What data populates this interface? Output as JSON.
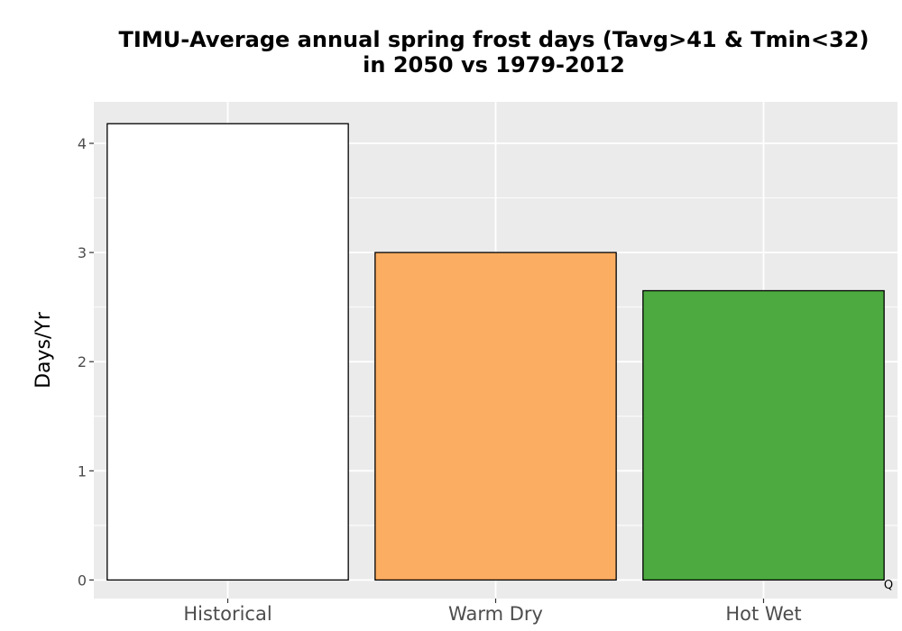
{
  "chart_data": {
    "type": "bar",
    "title_line1": "TIMU-Average annual spring frost days (Tavg>41 & Tmin<32)",
    "title_line2": "in 2050 vs 1979-2012",
    "xlabel": "",
    "ylabel": "Days/Yr",
    "categories": [
      "Historical",
      "Warm Dry",
      "Hot Wet"
    ],
    "values": [
      4.18,
      3.0,
      2.65
    ],
    "colors": [
      "#ffffff",
      "#fbad62",
      "#4daa40"
    ],
    "ylim": [
      -0.17,
      4.38
    ],
    "yticks": [
      0,
      1,
      2,
      3,
      4
    ],
    "grid": true,
    "background": "#ebebeb",
    "corner_mark": "Q"
  }
}
